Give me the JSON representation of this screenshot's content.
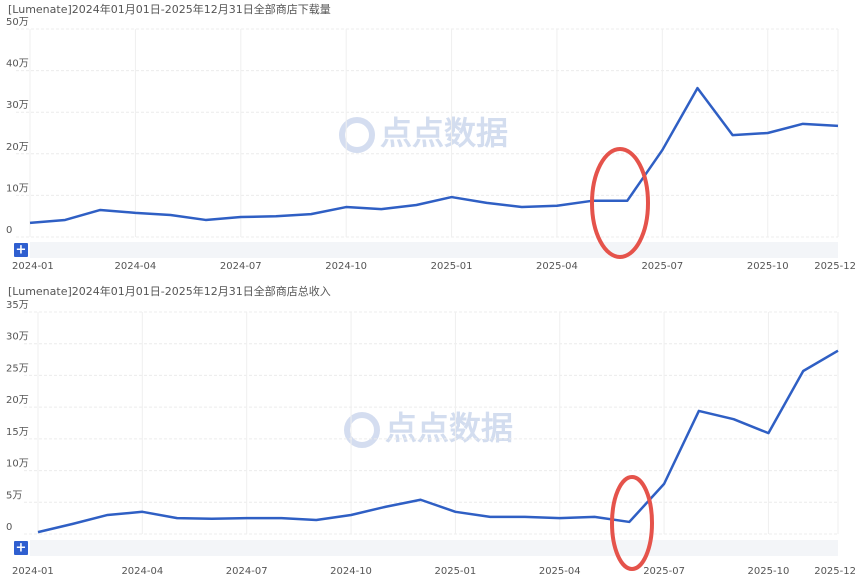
{
  "chart_data": [
    {
      "type": "line",
      "title": "[Lumenate]2024年01月01日-2025年12月31日全部商店下载量",
      "categories": [
        "2024-01",
        null,
        null,
        "2024-04",
        null,
        null,
        "2024-07",
        null,
        null,
        "2024-10",
        null,
        null,
        "2025-01",
        null,
        null,
        "2025-04",
        null,
        null,
        "2025-07",
        null,
        null,
        "2025-10",
        null,
        "2025-12"
      ],
      "series": [
        {
          "color": "#2f5fc4",
          "values": [
            3.4,
            4.1,
            6.5,
            5.8,
            5.3,
            4.1,
            4.8,
            5.0,
            5.5,
            7.2,
            6.7,
            7.7,
            9.6,
            8.2,
            7.2,
            7.5,
            8.7,
            8.7,
            20.9,
            35.8,
            24.5,
            25.0,
            27.2,
            26.7
          ]
        }
      ],
      "ylim": [
        0,
        50
      ],
      "yticks": [
        0,
        {
          "value": 10,
          "label": "10万"
        },
        {
          "value": 20,
          "label": "20万"
        },
        {
          "value": 30,
          "label": "30万"
        },
        {
          "value": 40,
          "label": "40万"
        },
        {
          "value": 50,
          "label": "50万"
        }
      ],
      "grid": true
    },
    {
      "type": "line",
      "title": "[Lumenate]2024年01月01日-2025年12月31日全部商店总收入",
      "categories": [
        "2024-01",
        null,
        null,
        "2024-04",
        null,
        null,
        "2024-07",
        null,
        null,
        "2024-10",
        null,
        null,
        "2025-01",
        null,
        null,
        "2025-04",
        null,
        null,
        "2025-07",
        null,
        null,
        "2025-10",
        null,
        "2025-12"
      ],
      "series": [
        {
          "color": "#2f5fc4",
          "values": [
            0.3,
            1.6,
            3.0,
            3.5,
            2.5,
            2.4,
            2.5,
            2.5,
            2.2,
            3.0,
            4.3,
            5.4,
            3.5,
            2.7,
            2.7,
            2.5,
            2.7,
            1.9,
            7.9,
            19.4,
            18.1,
            15.9,
            25.7,
            28.9
          ]
        }
      ],
      "ylim": [
        0,
        35
      ],
      "yticks": [
        0,
        {
          "value": 5,
          "label": "5万"
        },
        {
          "value": 10,
          "label": "10万"
        },
        {
          "value": 15,
          "label": "15万"
        },
        {
          "value": 20,
          "label": "20万"
        },
        {
          "value": 25,
          "label": "25万"
        },
        {
          "value": 30,
          "label": "30万"
        },
        {
          "value": 35,
          "label": "35万"
        }
      ],
      "grid": true
    }
  ],
  "watermark": "点点数据",
  "zoom_button": "+"
}
